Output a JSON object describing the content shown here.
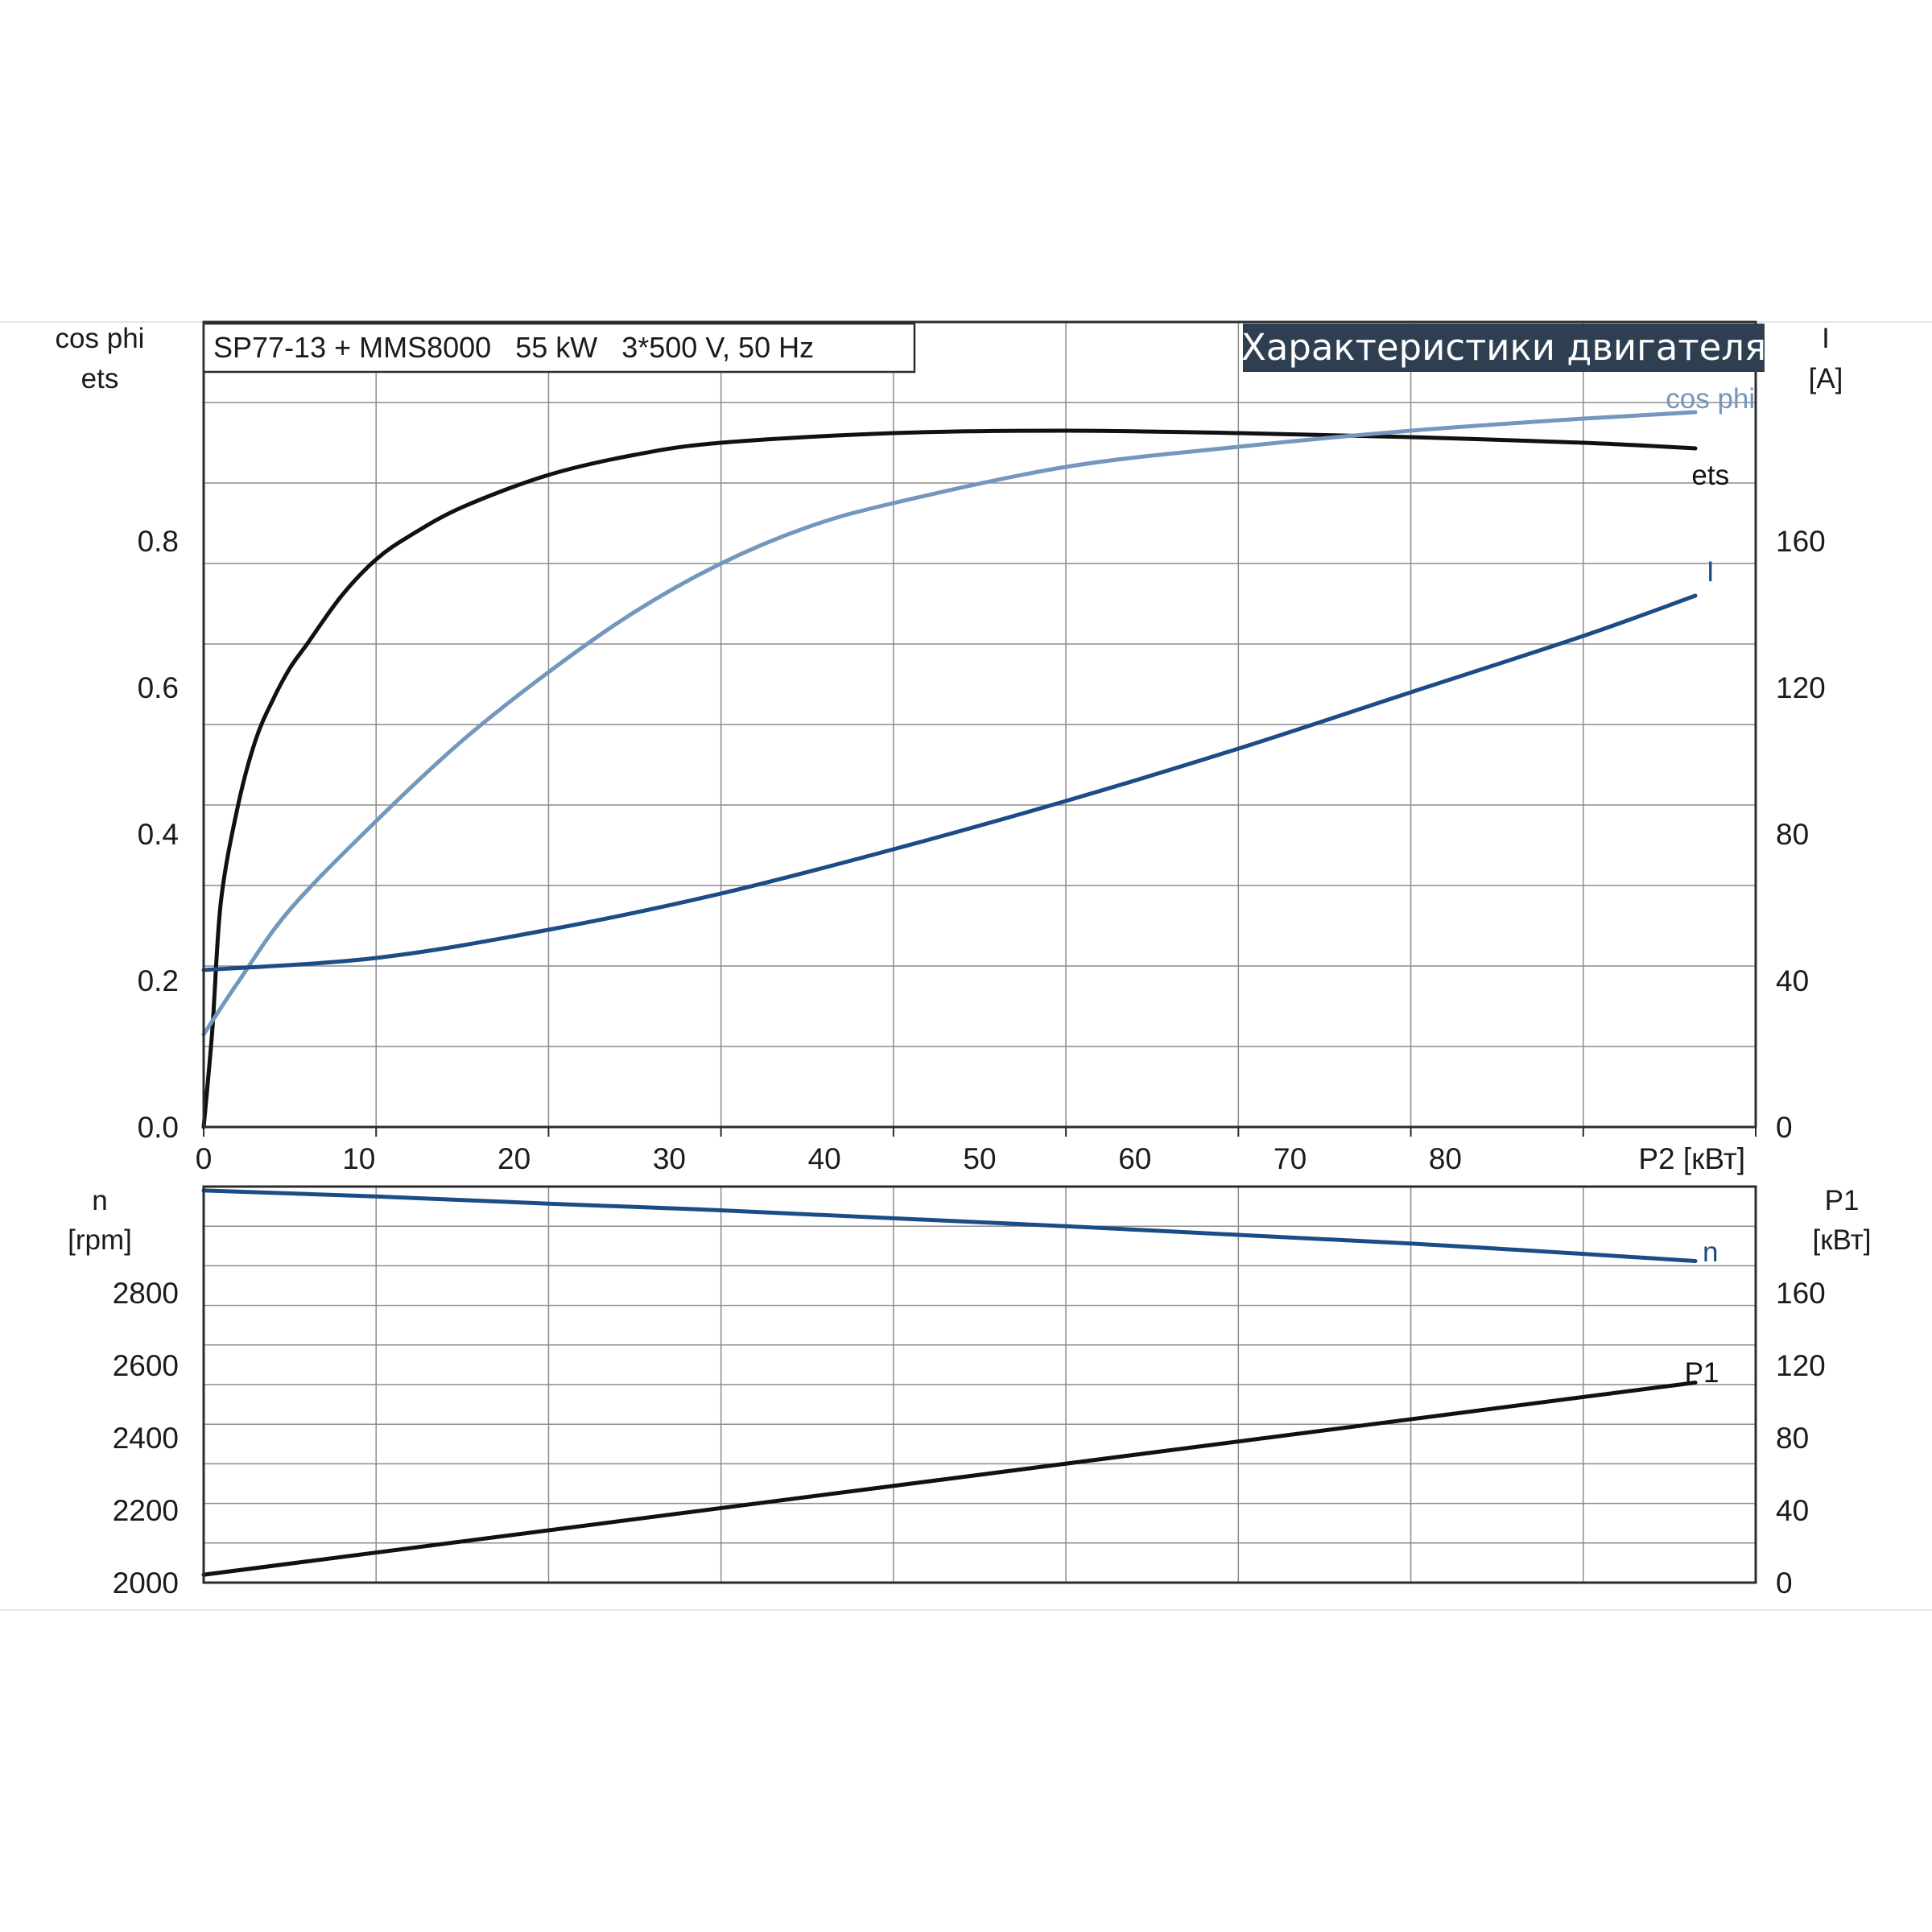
{
  "header": {
    "model": "SP77-13 + MMS8000   55 kW   3*500 V, 50 Hz",
    "banner": "Характеристики двигателя"
  },
  "colors": {
    "eta": "#111111",
    "cos_phi": "#7397bd",
    "current": "#1c4c86",
    "speed": "#1c4c86",
    "p1": "#111111",
    "banner_bg": "#2f3f52"
  },
  "chart_data": [
    {
      "type": "line",
      "x_label": "P2 [кВт]",
      "x_ticks": [
        "0",
        "10",
        "20",
        "30",
        "40",
        "50",
        "60",
        "70",
        "80"
      ],
      "xlim": [
        0,
        90
      ],
      "left_axis": {
        "title_line1": "cos phi",
        "title_line2": "ets",
        "ylim": [
          0,
          1.0
        ],
        "ticks": [
          "0.0",
          "0.2",
          "0.4",
          "0.6",
          "0.8"
        ]
      },
      "right_axis": {
        "title_line1": "I",
        "title_line2": "[A]",
        "ylim": [
          0,
          200
        ],
        "ticks": [
          "0",
          "40",
          "80",
          "120",
          "160"
        ]
      },
      "grid": true,
      "series": [
        {
          "name": "ets",
          "axis": "left",
          "color": "#111111",
          "label_at": [
            87,
            0.81
          ],
          "x": [
            0,
            0.5,
            1,
            2,
            3,
            4,
            5,
            6,
            8,
            10,
            12,
            15,
            20,
            25,
            30,
            40,
            50,
            60,
            70,
            80,
            86.5
          ],
          "y": [
            0,
            0.12,
            0.28,
            0.4,
            0.48,
            0.53,
            0.57,
            0.6,
            0.66,
            0.705,
            0.735,
            0.77,
            0.81,
            0.835,
            0.85,
            0.862,
            0.865,
            0.862,
            0.857,
            0.85,
            0.843
          ]
        },
        {
          "name": "cos phi",
          "axis": "left",
          "color": "#7397bd",
          "label_at": [
            87,
            0.905
          ],
          "x": [
            0,
            2,
            5,
            10,
            15,
            20,
            25,
            30,
            35,
            40,
            50,
            60,
            70,
            80,
            86.5
          ],
          "y": [
            0.115,
            0.18,
            0.27,
            0.38,
            0.48,
            0.565,
            0.64,
            0.7,
            0.745,
            0.775,
            0.82,
            0.845,
            0.865,
            0.88,
            0.888
          ]
        },
        {
          "name": "I",
          "axis": "right",
          "color": "#1c4c86",
          "label_at": [
            87,
            138
          ],
          "x": [
            0,
            10,
            20,
            30,
            40,
            50,
            60,
            70,
            80,
            86.5
          ],
          "y": [
            39,
            42,
            49,
            58,
            69,
            81,
            94,
            108,
            122,
            132
          ]
        }
      ]
    },
    {
      "type": "line",
      "x_label": "",
      "xlim": [
        0,
        90
      ],
      "left_axis": {
        "title_line1": "n",
        "title_line2": "[rpm]",
        "ylim": [
          2000,
          3000
        ],
        "ticks": [
          "2000",
          "2200",
          "2400",
          "2600",
          "2800"
        ]
      },
      "right_axis": {
        "title_line1": "P1",
        "title_line2": "[кВт]",
        "ylim": [
          0,
          200
        ],
        "ticks": [
          "0",
          "40",
          "80",
          "120",
          "160"
        ]
      },
      "grid": true,
      "series": [
        {
          "name": "n",
          "axis": "left",
          "color": "#1c4c86",
          "label_at": [
            87,
            2835
          ],
          "x": [
            0,
            10,
            20,
            30,
            40,
            50,
            60,
            70,
            80,
            86.5
          ],
          "y": [
            2990,
            2975,
            2957,
            2940,
            2920,
            2900,
            2878,
            2856,
            2830,
            2812
          ]
        },
        {
          "name": "P1",
          "axis": "right",
          "color": "#111111",
          "label_at": [
            86.5,
            106
          ],
          "x": [
            0,
            86.5
          ],
          "y": [
            4,
            101
          ]
        }
      ]
    }
  ]
}
